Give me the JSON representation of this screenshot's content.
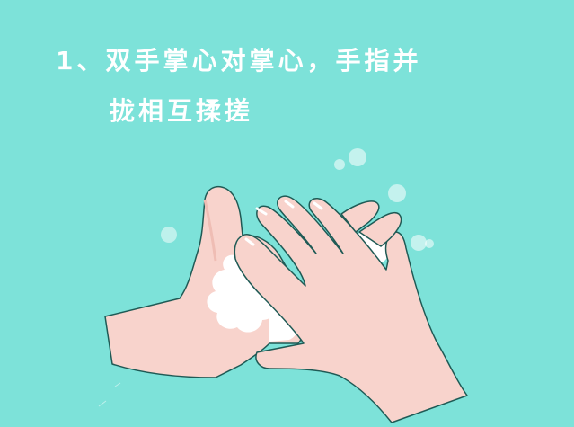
{
  "instruction": {
    "line1": "1、双手掌心对掌心，手指并",
    "line2": "拢相互揉搓"
  },
  "colors": {
    "background": "#7de2d9",
    "skin": "#f8d3cc",
    "skin_shadow": "#efbdb4",
    "outline": "#1f5a55",
    "foam": "#ffffff",
    "text": "#ffffff"
  }
}
